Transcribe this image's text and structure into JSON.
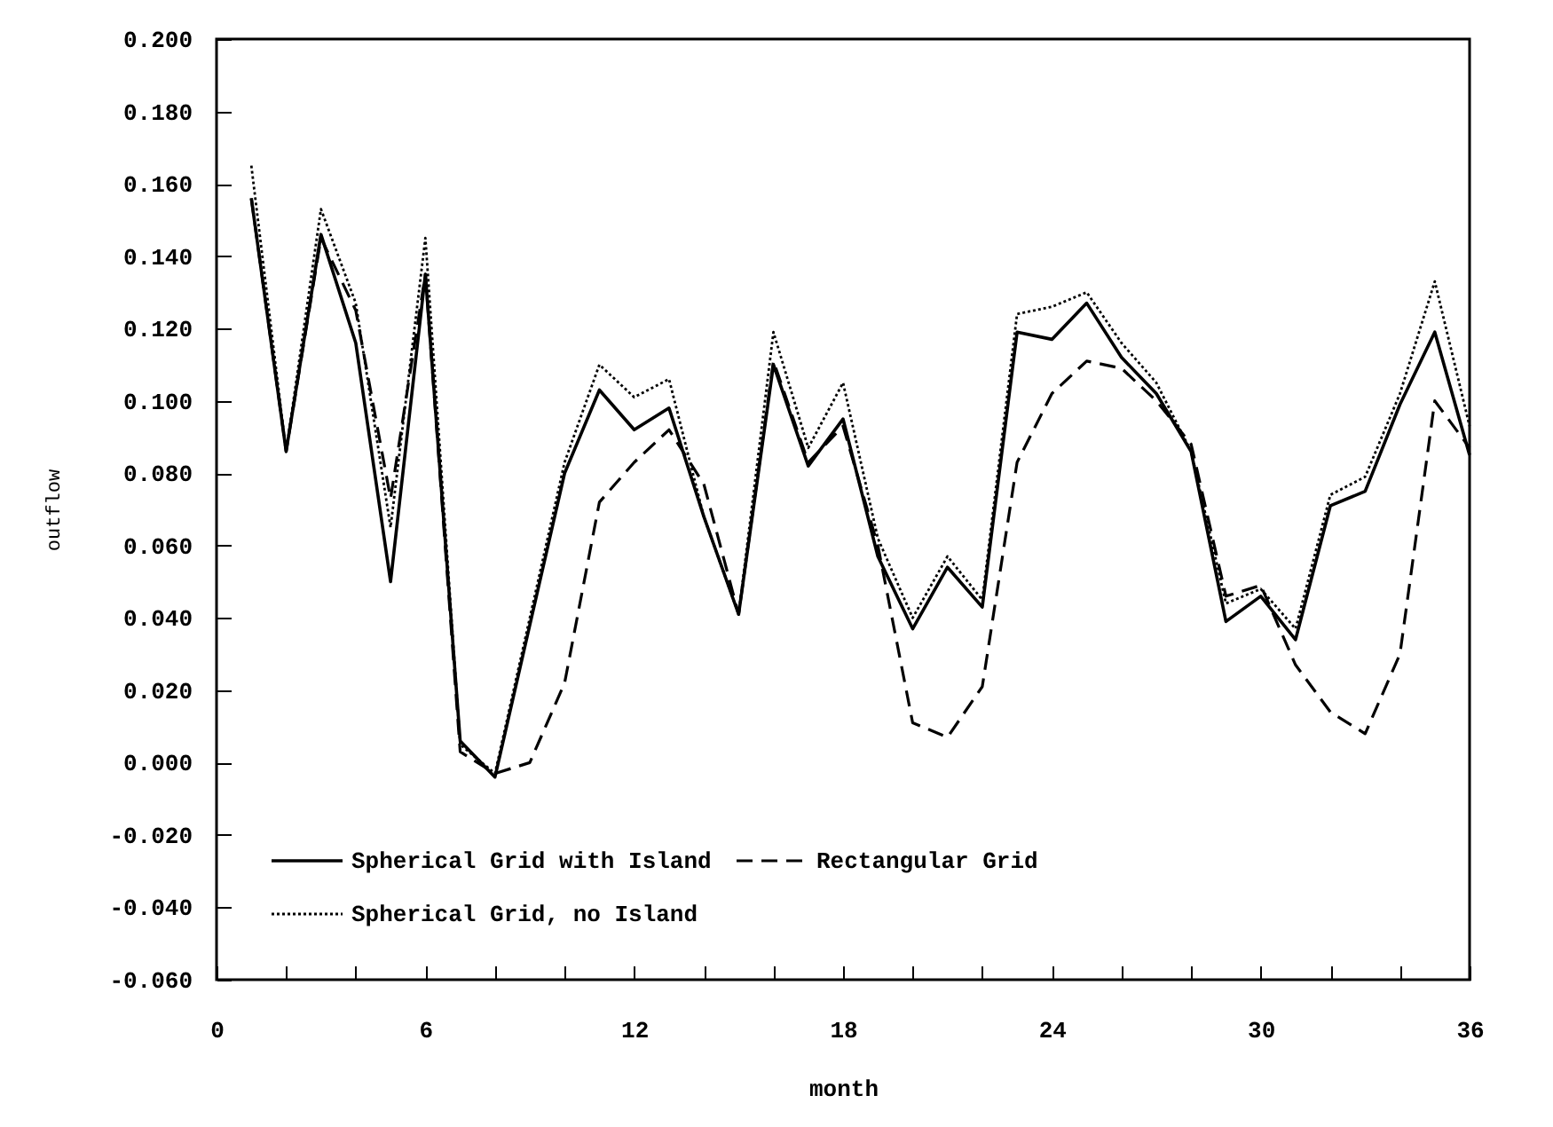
{
  "chart_data": {
    "type": "line",
    "xlabel": "month",
    "ylabel": "outflow",
    "xlim": [
      0,
      36
    ],
    "xticks": [
      0,
      {
        "value": 2,
        "label": null
      },
      {
        "value": 4,
        "label": null
      },
      6,
      {
        "value": 8,
        "label": null
      },
      {
        "value": 10,
        "label": null
      },
      12,
      {
        "value": 14,
        "label": null
      },
      {
        "value": 16,
        "label": null
      },
      18,
      {
        "value": 20,
        "label": null
      },
      {
        "value": 22,
        "label": null
      },
      24,
      {
        "value": 26,
        "label": null
      },
      {
        "value": 28,
        "label": null
      },
      30,
      {
        "value": 32,
        "label": null
      },
      {
        "value": 34,
        "label": null
      },
      36
    ],
    "ylim": [
      -0.06,
      0.2
    ],
    "yticks": [
      {
        "value": -0.06,
        "label": "-0.060"
      },
      {
        "value": -0.04,
        "label": "-0.040"
      },
      {
        "value": -0.02,
        "label": "-0.020"
      },
      {
        "value": 0,
        "label": "0.000"
      },
      {
        "value": 0.02,
        "label": "0.020"
      },
      {
        "value": 0.04,
        "label": "0.040"
      },
      {
        "value": 0.06,
        "label": "0.060"
      },
      {
        "value": 0.08,
        "label": "0.080"
      },
      {
        "value": 0.1,
        "label": "0.100"
      },
      {
        "value": 0.12,
        "label": "0.120"
      },
      {
        "value": 0.14,
        "label": "0.140"
      },
      {
        "value": 0.16,
        "label": "0.160"
      },
      {
        "value": 0.18,
        "label": "0.180"
      },
      {
        "value": 0.2,
        "label": "0.200"
      }
    ],
    "x": [
      1,
      2,
      3,
      4,
      5,
      6,
      7,
      8,
      9,
      10,
      11,
      12,
      13,
      14,
      15,
      16,
      17,
      18,
      19,
      20,
      21,
      22,
      23,
      24,
      25,
      26,
      27,
      28,
      29,
      30,
      31,
      32,
      33,
      34,
      35,
      36
    ],
    "grid": false,
    "legend": "bottom left",
    "marker": "none",
    "series": [
      {
        "name": "Spherical Grid with Island",
        "color": "#000000",
        "line_style": "solid",
        "values": [
          0.156,
          0.086,
          0.146,
          0.116,
          0.05,
          0.135,
          0.006,
          -0.004,
          0.038,
          0.08,
          0.103,
          0.092,
          0.098,
          0.068,
          0.041,
          0.11,
          0.082,
          0.095,
          0.057,
          0.037,
          0.054,
          0.043,
          0.119,
          0.117,
          0.127,
          0.112,
          0.102,
          0.086,
          0.039,
          0.046,
          0.034,
          0.071,
          0.075,
          0.099,
          0.119,
          0.085
        ]
      },
      {
        "name": "Rectangular Grid",
        "color": "#000000",
        "line_style": "dashed",
        "values": [
          0.156,
          0.086,
          0.145,
          0.125,
          0.073,
          0.135,
          0.003,
          -0.003,
          0.0,
          0.022,
          0.072,
          0.083,
          0.092,
          0.077,
          0.041,
          0.111,
          0.083,
          0.093,
          0.06,
          0.011,
          0.007,
          0.021,
          0.083,
          0.102,
          0.111,
          0.109,
          0.1,
          0.088,
          0.046,
          0.049,
          0.027,
          0.014,
          0.008,
          0.03,
          0.1,
          0.087
        ]
      },
      {
        "name": "Spherical Grid, no Island",
        "color": "#000000",
        "line_style": "dotted",
        "values": [
          0.165,
          0.086,
          0.153,
          0.127,
          0.065,
          0.145,
          0.005,
          -0.003,
          0.04,
          0.083,
          0.11,
          0.101,
          0.106,
          0.068,
          0.041,
          0.119,
          0.087,
          0.105,
          0.062,
          0.04,
          0.057,
          0.045,
          0.124,
          0.126,
          0.13,
          0.116,
          0.105,
          0.086,
          0.044,
          0.048,
          0.037,
          0.074,
          0.079,
          0.102,
          0.133,
          0.093
        ]
      }
    ]
  }
}
